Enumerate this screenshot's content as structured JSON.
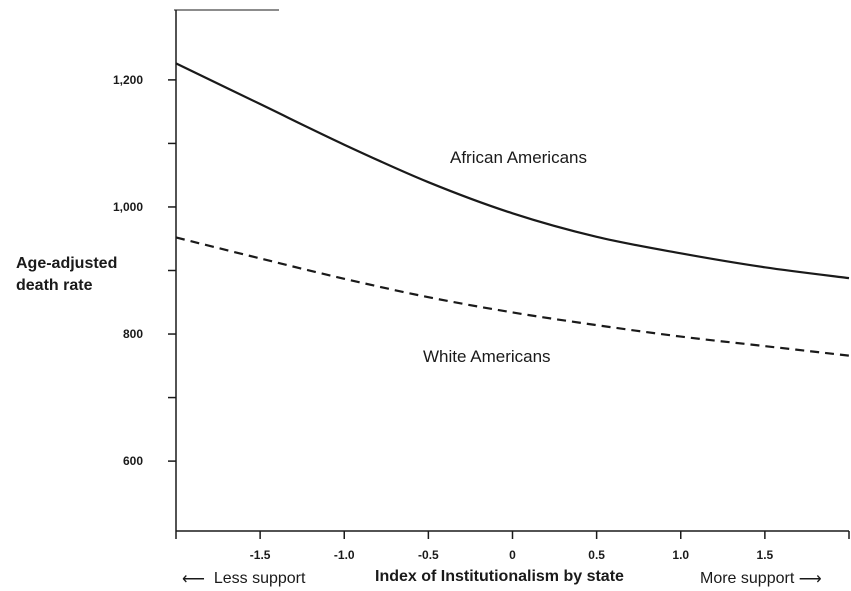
{
  "chart_data": {
    "type": "line",
    "xlabel": "Index of Institutionalism by state",
    "ylabel_lines": [
      "Age-adjusted",
      "death rate"
    ],
    "x_left_note": "Less support",
    "x_right_note": "More support",
    "xlim": [
      -2.0,
      2.0
    ],
    "ylim": [
      490,
      1310
    ],
    "x_ticks": [
      -1.5,
      -1.0,
      -0.5,
      0,
      0.5,
      1.0,
      1.5
    ],
    "x_tick_labels": [
      "-1.5",
      "-1.0",
      "-0.5",
      "0",
      "0.5",
      "1.0",
      "1.5"
    ],
    "y_ticks_labeled": [
      600,
      800,
      1000,
      1200
    ],
    "y_tick_labels": [
      "600",
      "800",
      "1,000",
      "1,200"
    ],
    "y_minor_ticks": [
      700,
      900,
      1100
    ],
    "grid": false,
    "series": [
      {
        "name": "African Americans",
        "style": "solid",
        "color": "#1a1a1a",
        "x": [
          -2.0,
          -1.5,
          -1.0,
          -0.5,
          0.0,
          0.5,
          1.0,
          1.5,
          2.0
        ],
        "y": [
          1226,
          1162,
          1098,
          1039,
          990,
          953,
          927,
          905,
          888
        ]
      },
      {
        "name": "White Americans",
        "style": "dashed",
        "color": "#1a1a1a",
        "x": [
          -2.0,
          -1.5,
          -1.0,
          -0.5,
          0.0,
          0.5,
          1.0,
          1.5,
          2.0
        ],
        "y": [
          952,
          919,
          887,
          858,
          834,
          814,
          796,
          781,
          766
        ]
      }
    ]
  }
}
